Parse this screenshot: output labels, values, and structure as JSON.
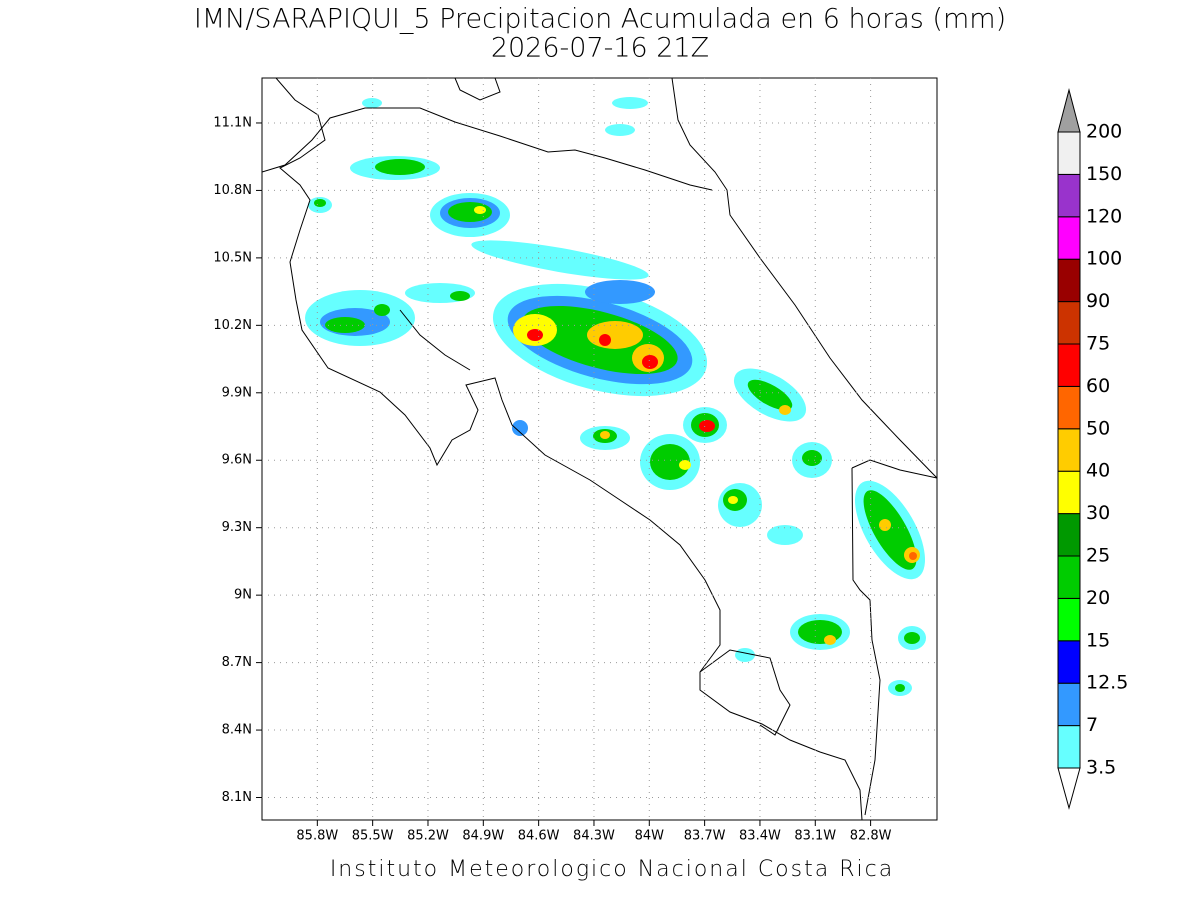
{
  "title": "IMN/SARAPIQUI_5 Precipitacion Acumulada en 6 horas (mm)",
  "subtitle": "2026-07-16 21Z",
  "footer": "Instituto Meteorologico Nacional Costa Rica",
  "map": {
    "xlim": [
      -86.1,
      -82.44
    ],
    "ylim": [
      8.0,
      11.3
    ],
    "xticks": [
      {
        "value": -85.8,
        "label": "85.8W"
      },
      {
        "value": -85.5,
        "label": "85.5W"
      },
      {
        "value": -85.2,
        "label": "85.2W"
      },
      {
        "value": -84.9,
        "label": "84.9W"
      },
      {
        "value": -84.6,
        "label": "84.6W"
      },
      {
        "value": -84.3,
        "label": "84.3W"
      },
      {
        "value": -84.0,
        "label": "84W"
      },
      {
        "value": -83.7,
        "label": "83.7W"
      },
      {
        "value": -83.4,
        "label": "83.4W"
      },
      {
        "value": -83.1,
        "label": "83.1W"
      },
      {
        "value": -82.8,
        "label": "82.8W"
      }
    ],
    "yticks": [
      {
        "value": 8.1,
        "label": "8.1N"
      },
      {
        "value": 8.4,
        "label": "8.4N"
      },
      {
        "value": 8.7,
        "label": "8.7N"
      },
      {
        "value": 9.0,
        "label": "9N"
      },
      {
        "value": 9.3,
        "label": "9.3N"
      },
      {
        "value": 9.6,
        "label": "9.6N"
      },
      {
        "value": 9.9,
        "label": "9.9N"
      },
      {
        "value": 10.2,
        "label": "10.2N"
      },
      {
        "value": 10.5,
        "label": "10.5N"
      },
      {
        "value": 10.8,
        "label": "10.8N"
      },
      {
        "value": 11.1,
        "label": "11.1N"
      }
    ],
    "grid": true
  },
  "colorbar": {
    "levels": [
      3.5,
      7,
      12.5,
      15,
      20,
      25,
      30,
      40,
      50,
      60,
      75,
      90,
      100,
      120,
      150,
      200
    ],
    "colors": [
      "#66ffff",
      "#3399ff",
      "#0000ff",
      "#00ff00",
      "#00cc00",
      "#009900",
      "#ffff00",
      "#ffcc00",
      "#ff6600",
      "#ff0000",
      "#cc3300",
      "#990000",
      "#ff00ff",
      "#9933cc",
      "#f0f0f0"
    ],
    "under_color": "#ffffff",
    "over_color": "#a0a0a0"
  }
}
